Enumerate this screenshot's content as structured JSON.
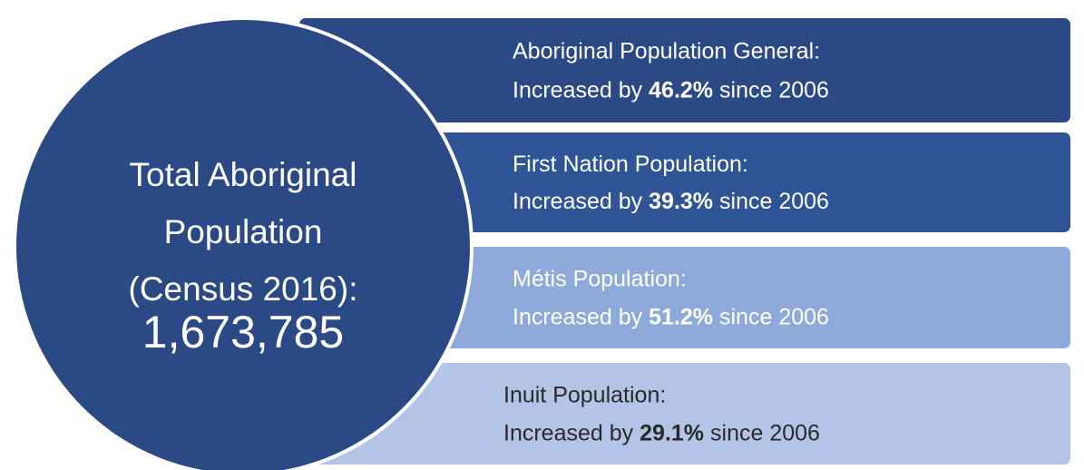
{
  "circle": {
    "lines": [
      "Total Aboriginal",
      "Population",
      "(Census 2016):"
    ],
    "total": "1,673,785",
    "color": "#2b4a85"
  },
  "items": [
    {
      "heading": "Aboriginal Population General:",
      "prefix": "Increased by",
      "percent": "46.2%",
      "suffix": "since 2006",
      "color": "#2b4a85",
      "text_color": "#ffffff"
    },
    {
      "heading": "First Nation Population:",
      "prefix": "Increased by",
      "percent": "39.3%",
      "suffix": "since 2006",
      "color": "#2f5597",
      "text_color": "#ffffff"
    },
    {
      "heading": "Métis Population:",
      "prefix": "Increased by",
      "percent": "51.2%",
      "suffix": "since 2006",
      "color": "#8eaadb",
      "text_color": "#ffffff"
    },
    {
      "heading": "Inuit Population:",
      "prefix": "Increased by",
      "percent": "29.1%",
      "suffix": "since 2006",
      "color": "#b4c4e7",
      "text_color": "#2a2a2a"
    }
  ]
}
